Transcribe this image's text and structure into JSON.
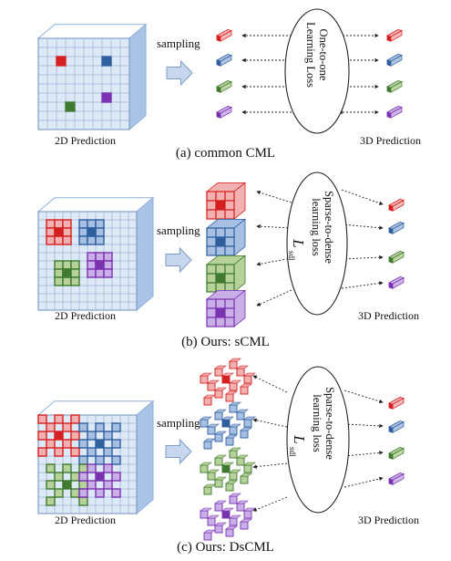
{
  "panels": [
    {
      "id": "a",
      "caption": "(a) common CML",
      "sampling_label": "sampling",
      "pred2d_label": "2D Prediction",
      "pred3d_label": "3D Prediction",
      "loss_lines": [
        "One-to-one",
        "Learning Loss"
      ],
      "loss_symbol": "",
      "loss_subscript": ""
    },
    {
      "id": "b",
      "caption": "(b) Ours: sCML",
      "sampling_label": "sampling",
      "pred2d_label": "2D Prediction",
      "pred3d_label": "3D Prediction",
      "loss_lines": [
        "Sparse-to-dense",
        "learning loss"
      ],
      "loss_symbol": "L",
      "loss_subscript": "sdl"
    },
    {
      "id": "c",
      "caption": "(c) Ours: DsCML",
      "sampling_label": "sampling",
      "pred2d_label": "2D Prediction",
      "pred3d_label": "3D Prediction",
      "loss_lines": [
        "Sparse-to-dense",
        "learning loss"
      ],
      "loss_symbol": "L",
      "loss_subscript": "sdl"
    }
  ],
  "colors": {
    "red": "#d42020",
    "blue": "#2f5f9e",
    "green": "#3f7a30",
    "purple": "#7a32b0",
    "red_light": "#f3b0b0",
    "blue_light": "#a7bfe2",
    "green_light": "#b6d29a",
    "purple_light": "#c9aee8",
    "grid_bg": "#dde9f6",
    "cube_side": "#a9c4e6",
    "arrow_fill": "#c6d7ee"
  }
}
